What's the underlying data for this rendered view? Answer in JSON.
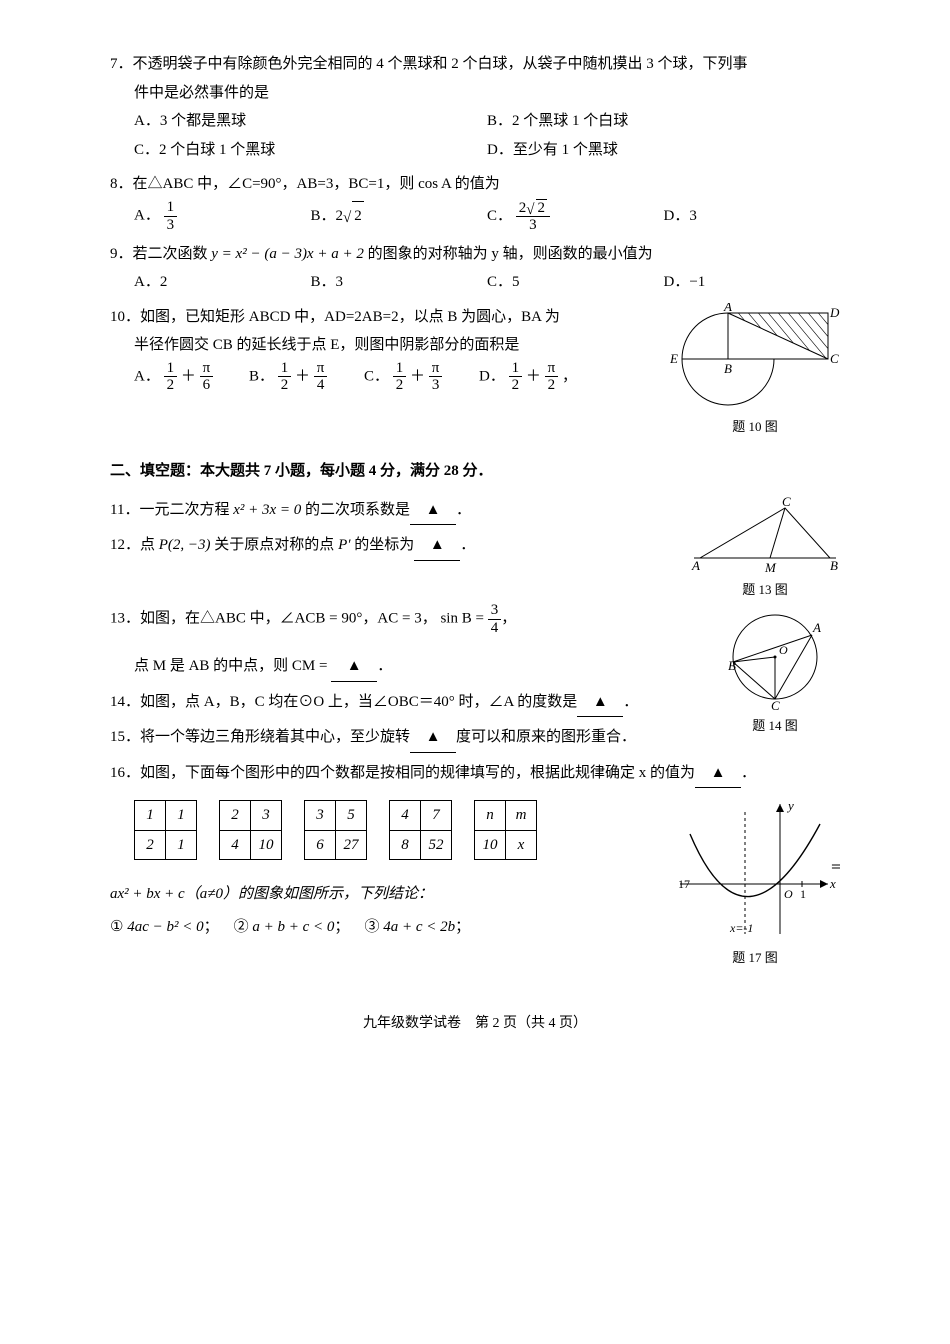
{
  "q7": {
    "text": "7．不透明袋子中有除颜色外完全相同的 4 个黑球和 2 个白球，从袋子中随机摸出 3 个球，下列事",
    "text2": "件中是必然事件的是",
    "optA": "A．3 个都是黑球",
    "optB": "B．2 个黑球 1 个白球",
    "optC": "C．2 个白球 1 个黑球",
    "optD": "D．至少有 1 个黑球"
  },
  "q8": {
    "text": "8．在△ABC 中，∠C=90°，AB=3，BC=1，则 cos A 的值为",
    "optA_pre": "A．",
    "optA_num": "1",
    "optA_den": "3",
    "optB_pre": "B．2",
    "optB_rad": "2",
    "optC_pre": "C．",
    "optC_num": "2",
    "optC_rad": "2",
    "optC_den": "3",
    "optD": "D．3"
  },
  "q9": {
    "pre": "9．若二次函数 ",
    "expr": "y = x² − (a − 3)x + a + 2",
    "post": " 的图象的对称轴为 y 轴，则函数的最小值为",
    "optA": "A．2",
    "optB": "B．3",
    "optC": "C．5",
    "optD": "D．−1"
  },
  "q10": {
    "line1": "10．如图，已知矩形 ABCD 中，AD=2AB=2，以点 B 为圆心，BA 为",
    "line2": "半径作圆交 CB 的延长线于点 E，则图中阴影部分的面积是",
    "optA_pre": "A．",
    "optB_pre": "B．",
    "optC_pre": "C．",
    "optD_pre": "D．",
    "half_num": "1",
    "half_den": "2",
    "pi6_num": "π",
    "pi6_den": "6",
    "pi4_num": "π",
    "pi4_den": "4",
    "pi3_num": "π",
    "pi3_den": "3",
    "pi2_num": "π",
    "pi2_den": "2",
    "plus": "＋",
    "comma": "，",
    "fig_label": "题 10 图"
  },
  "section2": "二、填空题：本大题共 7 小题，每小题 4 分，满分 28 分．",
  "q11": {
    "pre": "11．一元二次方程 ",
    "expr": "x² + 3x = 0",
    "post": " 的二次项系数是",
    "end": "．"
  },
  "q12": {
    "pre": "12．点 ",
    "pt": "P(2, −3)",
    "mid": " 关于原点对称的点 ",
    "pp": "P′",
    "post": " 的坐标为",
    "end": "．"
  },
  "q13": {
    "pre": "13．如图，在△ABC 中，∠ACB = 90°，AC = 3，",
    "sin_pre": "sin B =",
    "sin_num": "3",
    "sin_den": "4",
    "sin_post": "，",
    "line2_pre": "点 M 是 AB 的中点，则 CM = ",
    "end": "．",
    "fig_label": "题 13 图"
  },
  "q14": {
    "text": "14．如图，点 A，B，C 均在⊙O 上，当∠OBC＝40° 时，∠A 的度数是",
    "end": "．",
    "fig_label": "题 14 图"
  },
  "q15": {
    "pre": "15．将一个等边三角形绕着其中心，至少旋转",
    "post": "度可以和原来的图形重合．"
  },
  "q16": {
    "pre": "16．如图，下面每个图形中的四个数都是按相同的规律填写的，根据此规律确定 x 的值为",
    "end": "．",
    "tables": [
      [
        [
          "1",
          "1"
        ],
        [
          "2",
          "1"
        ]
      ],
      [
        [
          "2",
          "3"
        ],
        [
          "4",
          "10"
        ]
      ],
      [
        [
          "3",
          "5"
        ],
        [
          "6",
          "27"
        ]
      ],
      [
        [
          "4",
          "7"
        ],
        [
          "8",
          "52"
        ]
      ],
      [
        [
          "n",
          "m"
        ],
        [
          "10",
          "x"
        ]
      ]
    ]
  },
  "q17": {
    "line": "ax² + bx + c（a≠0）的图象如图所示，下列结论：",
    "c1_pre": "①",
    "c1": "4ac − b² < 0",
    "c2_pre": "②",
    "c2": "a + b + c < 0",
    "c3_pre": "③",
    "c3": "4a + c < 2b",
    "semi": "；",
    "fig_label": "题 17 图",
    "axis_x": "x",
    "axis_y": "y",
    "tick1": "1",
    "xneg1": "x=-1",
    "seventeen": "17",
    "eq": "＝"
  },
  "footer": "九年级数学试卷　第 2 页（共 4 页）"
}
